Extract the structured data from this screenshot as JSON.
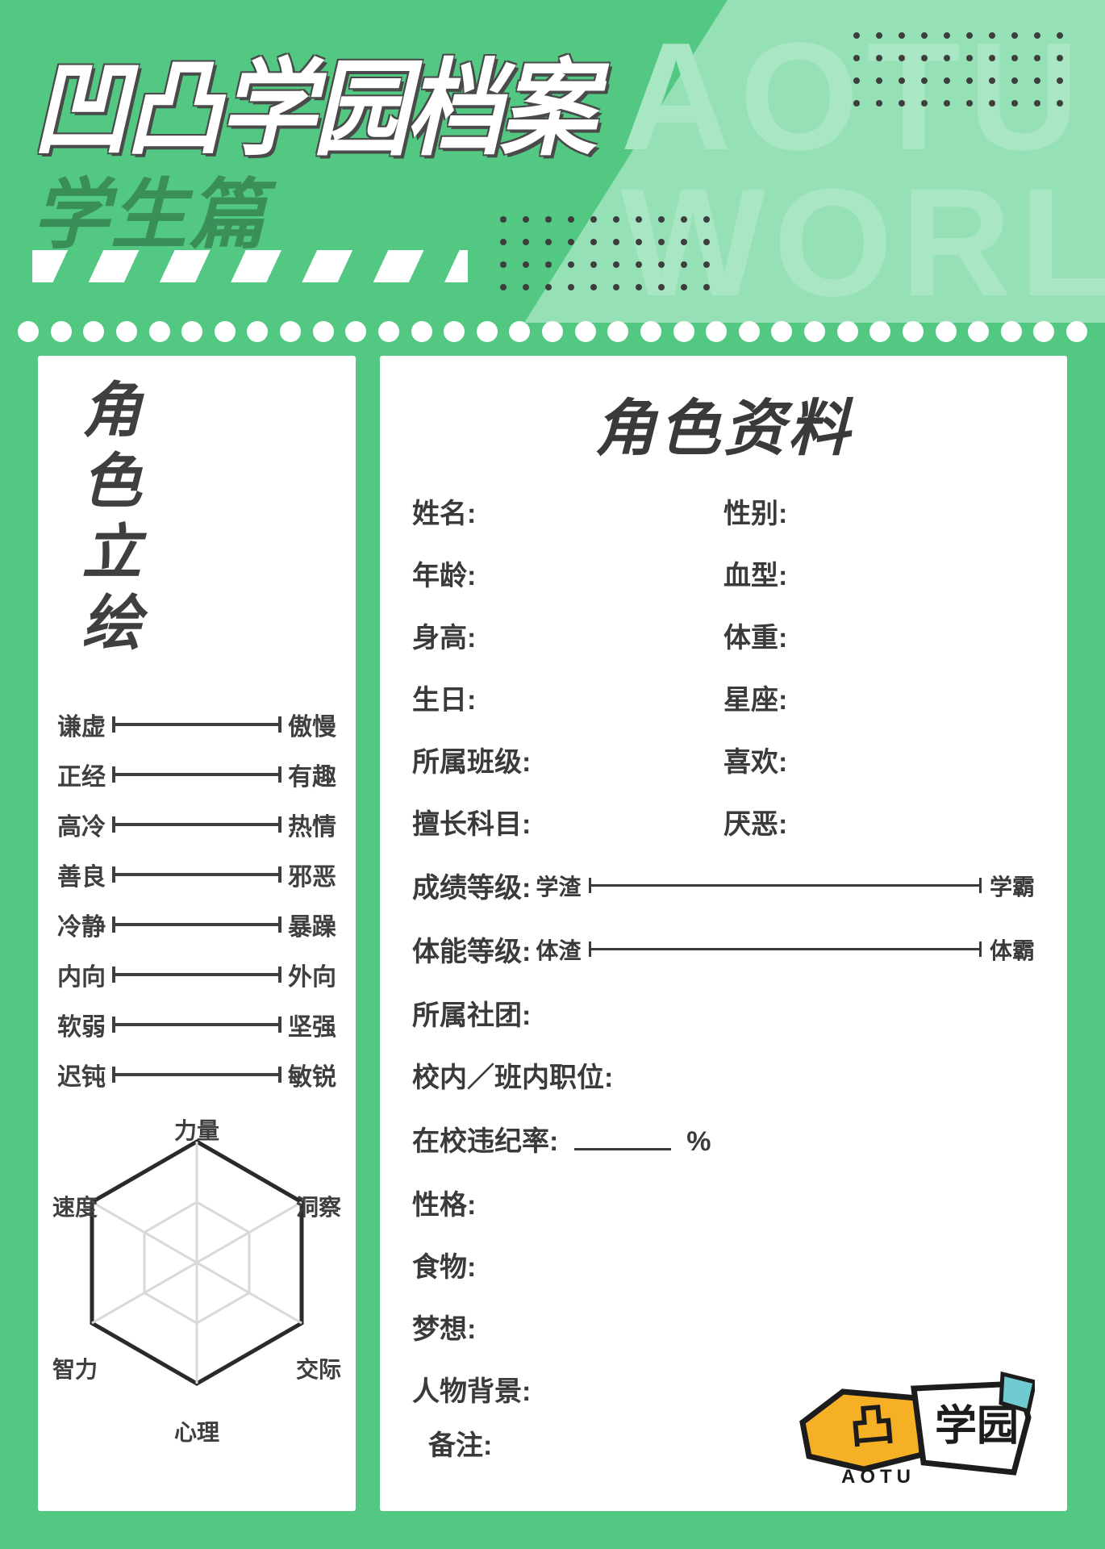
{
  "header": {
    "title_main": "凹凸学园档案",
    "title_sub": "学生篇",
    "watermark_line1": "AOTU",
    "watermark_line2": "WORL",
    "bg_primary": "#52c882",
    "bg_light": "#96e0b6",
    "text_dark": "#3a3a3a"
  },
  "left_panel": {
    "vertical_title": "角色立绘",
    "traits": [
      {
        "left": "谦虚",
        "right": "傲慢"
      },
      {
        "left": "正经",
        "right": "有趣"
      },
      {
        "left": "高冷",
        "right": "热情"
      },
      {
        "left": "善良",
        "right": "邪恶"
      },
      {
        "left": "冷静",
        "right": "暴躁"
      },
      {
        "left": "内向",
        "right": "外向"
      },
      {
        "left": "软弱",
        "right": "坚强"
      },
      {
        "left": "迟钝",
        "right": "敏锐"
      }
    ],
    "radar": {
      "type": "radar",
      "axes": [
        "力量",
        "洞察",
        "交际",
        "心理",
        "智力",
        "速度"
      ],
      "values": null,
      "outline_color": "#2a2a2a",
      "grid_color": "#d9d9d9",
      "levels": 2,
      "label_fontsize": 28
    }
  },
  "right_panel": {
    "title": "角色资料",
    "fields_grid": [
      {
        "label": "姓名:"
      },
      {
        "label": "性别:"
      },
      {
        "label": "年龄:"
      },
      {
        "label": "血型:"
      },
      {
        "label": "身高:"
      },
      {
        "label": "体重:"
      },
      {
        "label": "生日:"
      },
      {
        "label": "星座:"
      },
      {
        "label": "所属班级:"
      },
      {
        "label": "喜欢:"
      },
      {
        "label": "擅长科目:"
      },
      {
        "label": "厌恶:"
      }
    ],
    "sliders": [
      {
        "label": "成绩等级:",
        "left": "学渣",
        "right": "学霸"
      },
      {
        "label": "体能等级:",
        "left": "体渣",
        "right": "体霸"
      }
    ],
    "plain_fields": [
      "所属社团:",
      "校内／班内职位:"
    ],
    "violation": {
      "label": "在校违纪率:",
      "suffix": "%"
    },
    "tail_fields": [
      "性格:",
      "食物:",
      "梦想:",
      "人物背景:"
    ],
    "note_label": "备注:",
    "logo_text_1": "凹凸",
    "logo_text_2": "学园",
    "logo_sub": "AOTU"
  }
}
